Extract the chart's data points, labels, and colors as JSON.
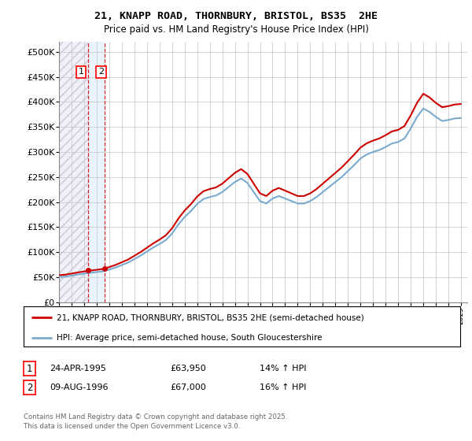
{
  "title_line1": "21, KNAPP ROAD, THORNBURY, BRISTOL, BS35  2HE",
  "title_line2": "Price paid vs. HM Land Registry's House Price Index (HPI)",
  "legend_line1": "21, KNAPP ROAD, THORNBURY, BRISTOL, BS35 2HE (semi-detached house)",
  "legend_line2": "HPI: Average price, semi-detached house, South Gloucestershire",
  "footer": "Contains HM Land Registry data © Crown copyright and database right 2025.\nThis data is licensed under the Open Government Licence v3.0.",
  "annotation1": {
    "num": "1",
    "date": "24-APR-1995",
    "price": "£63,950",
    "hpi": "14% ↑ HPI"
  },
  "annotation2": {
    "num": "2",
    "date": "09-AUG-1996",
    "price": "£67,000",
    "hpi": "16% ↑ HPI"
  },
  "vline1_year": 1995.31,
  "vline2_year": 1996.61,
  "sale1_year": 1995.31,
  "sale1_price": 63950,
  "sale2_year": 1996.61,
  "sale2_price": 67000,
  "hpi_color": "#7aabcf",
  "price_color": "#cc0000",
  "ylim": [
    0,
    520000
  ],
  "xlim": [
    1993,
    2025.5
  ],
  "yticks": [
    0,
    50000,
    100000,
    150000,
    200000,
    250000,
    300000,
    350000,
    400000,
    450000,
    500000
  ],
  "ytick_labels": [
    "£0",
    "£50K",
    "£100K",
    "£150K",
    "£200K",
    "£250K",
    "£300K",
    "£350K",
    "£400K",
    "£450K",
    "£500K"
  ]
}
